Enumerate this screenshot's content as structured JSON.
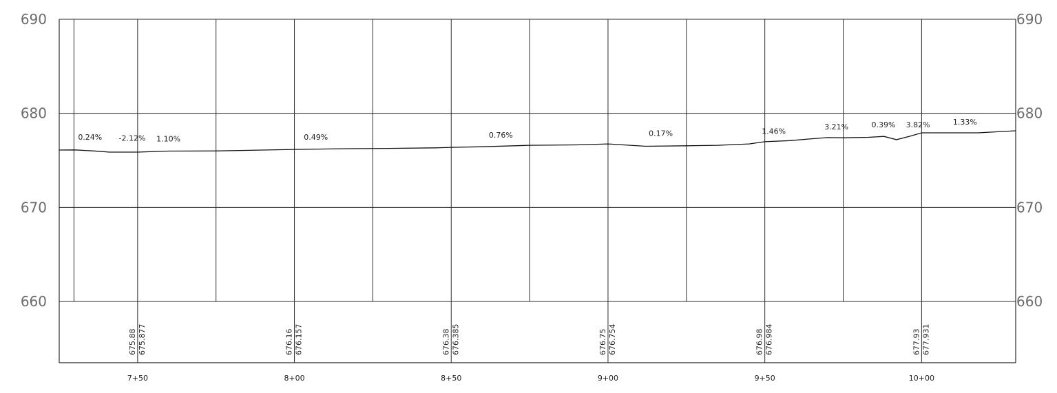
{
  "chart_data": {
    "type": "line",
    "title": "",
    "xlabel": "",
    "ylabel": "",
    "xlim": [
      725,
      1030
    ],
    "ylim": [
      660,
      690
    ],
    "y_ticks": [
      "660",
      "670",
      "680",
      "690"
    ],
    "y_tick_values": [
      660,
      670,
      680,
      690
    ],
    "station_ticks": [
      {
        "x": 750,
        "label": "7+50"
      },
      {
        "x": 800,
        "label": "8+00"
      },
      {
        "x": 850,
        "label": "8+50"
      },
      {
        "x": 900,
        "label": "9+00"
      },
      {
        "x": 950,
        "label": "9+50"
      },
      {
        "x": 1000,
        "label": "10+00"
      }
    ],
    "vertical_grid_x": [
      729.7,
      750,
      775,
      800,
      825,
      850,
      875,
      900,
      925,
      950,
      975,
      1000
    ],
    "series": [
      {
        "x": [
          725,
          730,
          736,
          741,
          750,
          760,
          775,
          790,
          800,
          815,
          830,
          845,
          850,
          860,
          875,
          890,
          900,
          912,
          925,
          935,
          945,
          950,
          958,
          965,
          970,
          975,
          983,
          988,
          992,
          996,
          1000,
          1010,
          1018,
          1030
        ],
        "y": [
          676.1,
          676.11,
          676.0,
          675.88,
          675.88,
          675.99,
          676.0,
          676.1,
          676.16,
          676.24,
          676.27,
          676.33,
          676.38,
          676.45,
          676.6,
          676.65,
          676.75,
          676.5,
          676.55,
          676.6,
          676.75,
          676.98,
          677.1,
          677.3,
          677.42,
          677.4,
          677.45,
          677.55,
          677.2,
          677.55,
          677.93,
          677.93,
          677.93,
          678.15
        ]
      }
    ],
    "grade_annotations": [
      {
        "x": 731,
        "y": 677.2,
        "text": "0.24%"
      },
      {
        "x": 744,
        "y": 677.1,
        "text": "-2.12%"
      },
      {
        "x": 756,
        "y": 677.0,
        "text": "1.10%"
      },
      {
        "x": 803,
        "y": 677.2,
        "text": "0.49%"
      },
      {
        "x": 862,
        "y": 677.4,
        "text": "0.76%"
      },
      {
        "x": 913,
        "y": 677.6,
        "text": "0.17%"
      },
      {
        "x": 949,
        "y": 677.8,
        "text": "1.46%"
      },
      {
        "x": 969,
        "y": 678.3,
        "text": "3.21%"
      },
      {
        "x": 984,
        "y": 678.5,
        "text": "0.39%"
      },
      {
        "x": 995,
        "y": 678.5,
        "text": "3.82%"
      },
      {
        "x": 1010,
        "y": 678.8,
        "text": "1.33%"
      }
    ],
    "elevation_labels": [
      {
        "x": 750,
        "values": [
          "675.88",
          "675.877"
        ]
      },
      {
        "x": 800,
        "values": [
          "676.16",
          "676.157"
        ]
      },
      {
        "x": 850,
        "values": [
          "676.38",
          "676.385"
        ]
      },
      {
        "x": 900,
        "values": [
          "676.75",
          "676.754"
        ]
      },
      {
        "x": 950,
        "values": [
          "676.98",
          "676.984"
        ]
      },
      {
        "x": 1000,
        "values": [
          "677.93",
          "677.931"
        ]
      }
    ],
    "grid": true,
    "legend": "none"
  }
}
